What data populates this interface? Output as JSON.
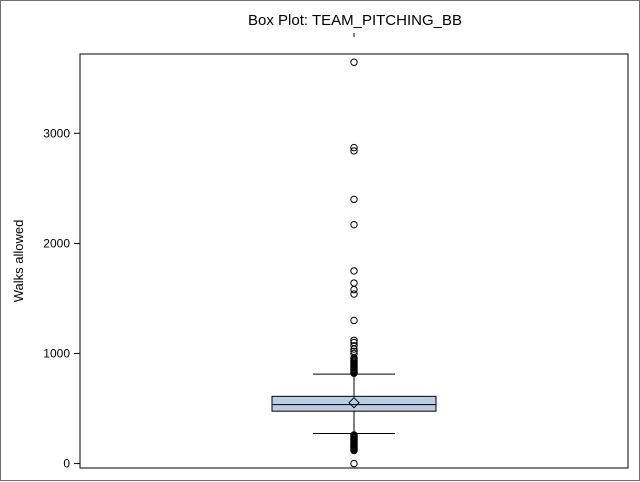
{
  "chart_data": {
    "type": "box",
    "title": "Box Plot: TEAM_PITCHING_BB",
    "xlabel": "",
    "ylabel": "Walks allowed",
    "ylim": [
      -40,
      3720
    ],
    "yticks": [
      0,
      1000,
      2000,
      3000
    ],
    "colors": {
      "box_fill": "#b9cde5",
      "box_stroke": "#000000",
      "frame": "#000000",
      "page_border": "#6f6f6f"
    },
    "summary": {
      "min_whisker": 273,
      "q1": 476,
      "median": 536,
      "mean": 553,
      "q3": 611,
      "max_whisker": 813
    },
    "outliers": [
      0,
      119,
      125,
      133,
      140,
      148,
      156,
      164,
      172,
      180,
      188,
      196,
      204,
      212,
      220,
      228,
      236,
      244,
      252,
      260,
      820,
      828,
      836,
      844,
      852,
      860,
      870,
      880,
      890,
      900,
      910,
      920,
      930,
      940,
      950,
      960,
      1000,
      1020,
      1040,
      1070,
      1100,
      1120,
      1300,
      1540,
      1580,
      1640,
      1750,
      2170,
      2400,
      2840,
      2870,
      3645
    ]
  }
}
